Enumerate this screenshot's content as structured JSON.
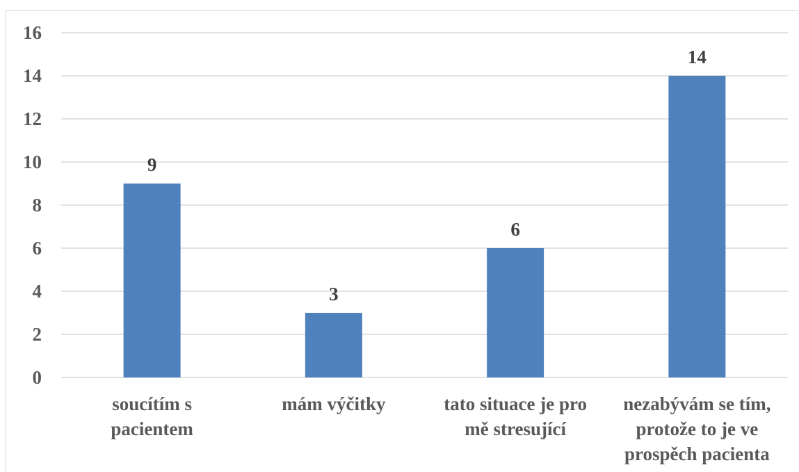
{
  "chart_data": {
    "type": "bar",
    "categories": [
      [
        "soucítím s",
        "pacientem"
      ],
      [
        "mám výčitky"
      ],
      [
        "tato situace je pro",
        "mě stresující"
      ],
      [
        "nezabývám se tím,",
        "protože to je ve",
        "prospěch pacienta"
      ]
    ],
    "values": [
      9,
      3,
      6,
      14
    ],
    "data_labels": [
      "9",
      "3",
      "6",
      "14"
    ],
    "title": "",
    "xlabel": "",
    "ylabel": "",
    "ylim": [
      0,
      16
    ],
    "yticks": [
      0,
      2,
      4,
      6,
      8,
      10,
      12,
      14,
      16
    ],
    "grid": true,
    "legend": "none",
    "bar_color": "#4f81bd"
  }
}
